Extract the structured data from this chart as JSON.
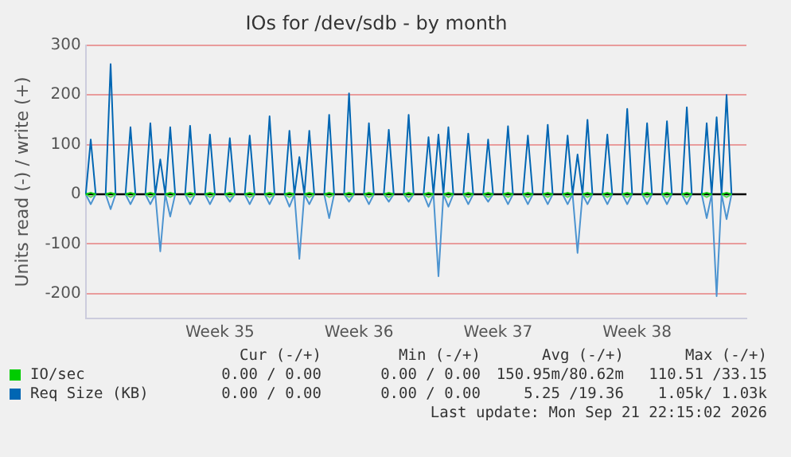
{
  "chart_data": {
    "type": "line",
    "title": "IOs for /dev/sdb - by month",
    "ylabel": "Units read (-) / write (+)",
    "categories": [
      null,
      null,
      null,
      null,
      null,
      null,
      null,
      null,
      null,
      null,
      null,
      null,
      null,
      null,
      null,
      null,
      null,
      null,
      null,
      null,
      null,
      null,
      null,
      null,
      null,
      null,
      null,
      "Week 35",
      null,
      null,
      null,
      null,
      null,
      null,
      null,
      null,
      null,
      null,
      null,
      null,
      null,
      null,
      null,
      null,
      null,
      null,
      null,
      null,
      null,
      null,
      null,
      null,
      null,
      null,
      null,
      "Week 36",
      null,
      null,
      null,
      null,
      null,
      null,
      null,
      null,
      null,
      null,
      null,
      null,
      null,
      null,
      null,
      null,
      null,
      null,
      null,
      null,
      null,
      null,
      null,
      null,
      null,
      null,
      null,
      "Week 37",
      null,
      null,
      null,
      null,
      null,
      null,
      null,
      null,
      null,
      null,
      null,
      null,
      null,
      null,
      null,
      null,
      null,
      null,
      null,
      null,
      null,
      null,
      null,
      null,
      null,
      null,
      null,
      "Week 38",
      null,
      null,
      null,
      null,
      null,
      null,
      null,
      null,
      null,
      null,
      null,
      null,
      null,
      null,
      null,
      null,
      null,
      null,
      null,
      null,
      null,
      null
    ],
    "ylim": [
      -250,
      300
    ],
    "yticks": [
      -200,
      -100,
      0,
      100,
      200,
      300
    ],
    "grid": "y",
    "legend": "bottom",
    "marker": "none",
    "ref_lines": [
      {
        "axis": "y",
        "value": 0,
        "color": "#000000"
      }
    ],
    "series": [
      {
        "name": "IO/sec",
        "color": "#00cc00",
        "values": [
          0,
          3,
          0,
          null,
          0,
          3,
          0,
          null,
          0,
          3,
          0,
          null,
          0,
          3,
          0,
          null,
          0,
          3,
          0,
          null,
          0,
          3,
          0,
          null,
          0,
          3,
          0,
          null,
          0,
          3,
          0,
          null,
          0,
          3,
          0,
          null,
          0,
          3,
          0,
          null,
          0,
          3,
          0,
          null,
          0,
          3,
          0,
          null,
          0,
          3,
          0,
          null,
          0,
          3,
          0,
          null,
          0,
          3,
          0,
          null,
          0,
          3,
          0,
          null,
          0,
          3,
          0,
          null,
          0,
          3,
          0,
          null,
          0,
          3,
          0,
          null,
          0,
          3,
          0,
          null,
          0,
          3,
          0,
          null,
          0,
          3,
          0,
          null,
          0,
          3,
          0,
          null,
          0,
          3,
          0,
          null,
          0,
          3,
          0,
          null,
          0,
          3,
          0,
          null,
          0,
          3,
          0,
          null,
          0,
          3,
          0,
          null,
          0,
          3,
          0,
          null,
          0,
          3,
          0,
          null,
          0,
          3,
          0,
          null,
          0,
          3,
          0,
          null,
          0,
          3,
          0,
          null,
          null,
          null
        ]
      },
      {
        "color": "#55dd55",
        "values": [
          0,
          -6,
          0,
          null,
          0,
          -6,
          0,
          null,
          0,
          -6,
          0,
          null,
          0,
          -6,
          0,
          null,
          0,
          -6,
          0,
          null,
          0,
          -6,
          0,
          null,
          0,
          -6,
          0,
          null,
          0,
          -6,
          0,
          null,
          0,
          -6,
          0,
          null,
          0,
          -6,
          0,
          null,
          0,
          -6,
          0,
          null,
          0,
          -6,
          0,
          null,
          0,
          -6,
          0,
          null,
          0,
          -6,
          0,
          null,
          0,
          -6,
          0,
          null,
          0,
          -6,
          0,
          null,
          0,
          -6,
          0,
          null,
          0,
          -6,
          0,
          null,
          0,
          -6,
          0,
          null,
          0,
          -6,
          0,
          null,
          0,
          -6,
          0,
          null,
          0,
          -6,
          0,
          null,
          0,
          -6,
          0,
          null,
          0,
          -6,
          0,
          null,
          0,
          -6,
          0,
          null,
          0,
          -6,
          0,
          null,
          0,
          -6,
          0,
          null,
          0,
          -6,
          0,
          null,
          0,
          -6,
          0,
          null,
          0,
          -6,
          0,
          null,
          0,
          -6,
          0,
          null,
          0,
          -6,
          0,
          null,
          0,
          -6,
          0,
          null,
          null,
          null
        ]
      },
      {
        "name": "Req Size (KB)",
        "color": "#0066b3",
        "values": [
          0,
          110,
          0,
          null,
          0,
          262,
          0,
          null,
          0,
          135,
          0,
          null,
          0,
          143,
          0,
          70,
          0,
          135,
          0,
          null,
          0,
          138,
          0,
          null,
          0,
          120,
          0,
          null,
          0,
          113,
          0,
          null,
          0,
          118,
          0,
          null,
          0,
          157,
          0,
          null,
          0,
          128,
          0,
          75,
          0,
          128,
          0,
          null,
          0,
          160,
          0,
          null,
          0,
          203,
          0,
          null,
          0,
          143,
          0,
          null,
          0,
          130,
          0,
          null,
          0,
          160,
          0,
          null,
          0,
          115,
          0,
          120,
          0,
          135,
          0,
          null,
          0,
          122,
          0,
          null,
          0,
          110,
          0,
          null,
          0,
          137,
          0,
          null,
          0,
          118,
          0,
          null,
          0,
          140,
          0,
          null,
          0,
          118,
          0,
          80,
          0,
          150,
          0,
          null,
          0,
          120,
          0,
          null,
          0,
          172,
          0,
          null,
          0,
          143,
          0,
          null,
          0,
          147,
          0,
          null,
          0,
          175,
          0,
          null,
          0,
          143,
          0,
          155,
          0,
          200,
          0,
          null,
          null,
          null
        ]
      },
      {
        "color": "#4d94d0",
        "values": [
          0,
          -20,
          0,
          null,
          0,
          -30,
          0,
          null,
          0,
          -20,
          0,
          null,
          0,
          -20,
          0,
          -115,
          0,
          -45,
          0,
          null,
          0,
          -20,
          0,
          null,
          0,
          -20,
          0,
          null,
          0,
          -15,
          0,
          null,
          0,
          -20,
          0,
          null,
          0,
          -20,
          0,
          null,
          0,
          -25,
          0,
          -130,
          0,
          -20,
          0,
          null,
          0,
          -48,
          0,
          null,
          0,
          -15,
          0,
          null,
          0,
          -20,
          0,
          null,
          0,
          -15,
          0,
          null,
          0,
          -15,
          0,
          null,
          0,
          -25,
          0,
          -165,
          0,
          -25,
          0,
          null,
          0,
          -20,
          0,
          null,
          0,
          -15,
          0,
          null,
          0,
          -20,
          0,
          null,
          0,
          -20,
          0,
          null,
          0,
          -20,
          0,
          null,
          0,
          -20,
          0,
          -118,
          0,
          -20,
          0,
          null,
          0,
          -20,
          0,
          null,
          0,
          -20,
          0,
          null,
          0,
          -20,
          0,
          null,
          0,
          -20,
          0,
          null,
          0,
          -20,
          0,
          null,
          0,
          -48,
          0,
          -205,
          0,
          -50,
          0,
          null,
          null,
          null
        ]
      }
    ],
    "annotations": [
      "Cur (-/+)",
      "Min (-/+)",
      "Avg (-/+)",
      "Max (-/+)",
      "0.00 / 0.00",
      "0.00 / 0.00",
      "150.95m/80.62m",
      "110.51 /33.15",
      "0.00 / 0.00",
      "0.00 / 0.00",
      "5.25 /19.36",
      "1.05k/ 1.03k",
      "Last update: Mon Sep 21 22:15:02 2026"
    ]
  }
}
